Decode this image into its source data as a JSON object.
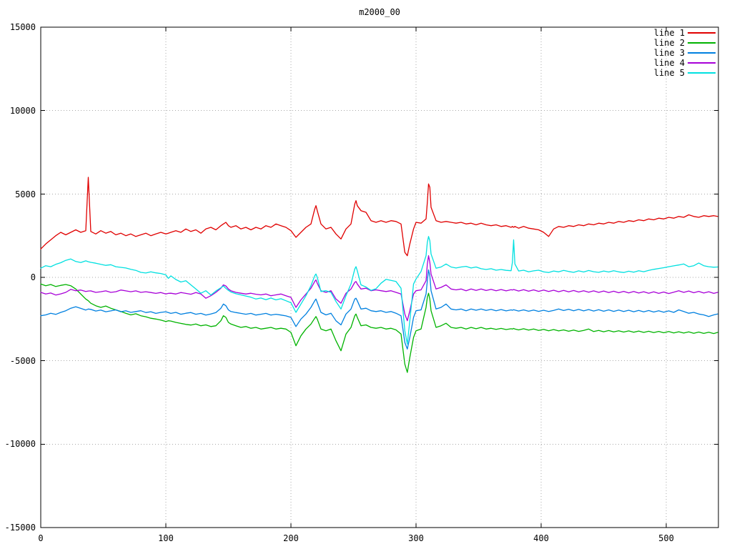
{
  "title": "m2000_00",
  "chart_data": {
    "type": "line",
    "title": "m2000_00",
    "xlabel": "",
    "ylabel": "",
    "xlim": [
      0,
      541.7
    ],
    "ylim": [
      -15000,
      15000
    ],
    "grid": "dotted-gray-at-major-ticks",
    "legend_position": "top-right-inside",
    "background": "#ffffff",
    "xticks": [
      0,
      100,
      200,
      300,
      400,
      500
    ],
    "yticks": [
      15000,
      10000,
      5000,
      0,
      -5000,
      -10000,
      -15000
    ],
    "xtick_labels": [
      "0",
      "100",
      "200",
      "300",
      "400",
      "500"
    ],
    "ytick_labels": [
      "15000",
      "10000",
      "5000",
      "0",
      "-5000",
      "-10000",
      "-15000"
    ],
    "x": [
      0,
      4,
      8,
      12,
      16,
      20,
      24,
      28,
      32,
      36,
      38,
      40,
      44,
      48,
      52,
      56,
      60,
      64,
      68,
      72,
      76,
      80,
      84,
      88,
      92,
      96,
      100,
      102,
      104,
      108,
      112,
      116,
      120,
      124,
      128,
      132,
      136,
      140,
      144,
      146,
      148,
      150,
      152,
      156,
      160,
      164,
      168,
      172,
      176,
      180,
      184,
      188,
      192,
      196,
      200,
      204,
      208,
      212,
      216,
      219,
      220,
      221,
      224,
      228,
      232,
      236,
      240,
      244,
      248,
      251,
      252,
      253,
      256,
      260,
      264,
      268,
      272,
      276,
      280,
      284,
      288,
      291,
      293,
      295,
      298,
      300,
      304,
      308,
      309,
      310,
      311,
      312,
      316,
      320,
      324,
      328,
      332,
      336,
      340,
      344,
      348,
      352,
      356,
      360,
      364,
      368,
      372,
      376,
      377,
      378,
      379,
      382,
      386,
      390,
      394,
      398,
      402,
      406,
      410,
      414,
      418,
      422,
      426,
      430,
      434,
      438,
      442,
      446,
      450,
      454,
      458,
      462,
      466,
      470,
      474,
      478,
      482,
      486,
      490,
      494,
      498,
      502,
      506,
      510,
      514,
      518,
      522,
      526,
      530,
      534,
      538,
      541
    ],
    "series": [
      {
        "name": "line 1",
        "color": "#e00000",
        "values": [
          1700,
          2000,
          2250,
          2500,
          2700,
          2550,
          2700,
          2850,
          2700,
          2800,
          6000,
          2750,
          2600,
          2800,
          2650,
          2750,
          2550,
          2650,
          2500,
          2600,
          2450,
          2550,
          2650,
          2500,
          2600,
          2700,
          2600,
          2650,
          2700,
          2800,
          2700,
          2900,
          2750,
          2850,
          2650,
          2900,
          3000,
          2850,
          3100,
          3200,
          3300,
          3100,
          3000,
          3100,
          2900,
          3000,
          2850,
          3000,
          2900,
          3100,
          3000,
          3200,
          3100,
          3000,
          2800,
          2400,
          2700,
          3000,
          3200,
          4100,
          4300,
          4000,
          3200,
          2900,
          3000,
          2600,
          2300,
          2900,
          3200,
          4400,
          4600,
          4300,
          4000,
          3900,
          3400,
          3300,
          3400,
          3300,
          3400,
          3350,
          3200,
          1500,
          1300,
          2000,
          2900,
          3300,
          3250,
          3500,
          4500,
          5600,
          5400,
          4200,
          3400,
          3300,
          3350,
          3300,
          3250,
          3300,
          3200,
          3250,
          3150,
          3250,
          3150,
          3100,
          3150,
          3050,
          3100,
          3000,
          3050,
          3000,
          3050,
          2950,
          3050,
          2950,
          2900,
          2850,
          2700,
          2450,
          2900,
          3050,
          3000,
          3100,
          3050,
          3150,
          3100,
          3200,
          3150,
          3250,
          3200,
          3300,
          3250,
          3350,
          3300,
          3400,
          3350,
          3450,
          3400,
          3500,
          3450,
          3550,
          3500,
          3600,
          3550,
          3650,
          3600,
          3750,
          3650,
          3600,
          3700,
          3650,
          3700,
          3650
        ]
      },
      {
        "name": "line 2",
        "color": "#00b300",
        "values": [
          -400,
          -500,
          -430,
          -550,
          -480,
          -430,
          -500,
          -700,
          -1000,
          -1300,
          -1400,
          -1550,
          -1700,
          -1800,
          -1720,
          -1850,
          -1950,
          -2050,
          -2150,
          -2250,
          -2180,
          -2300,
          -2360,
          -2450,
          -2500,
          -2560,
          -2650,
          -2600,
          -2620,
          -2700,
          -2760,
          -2820,
          -2860,
          -2800,
          -2900,
          -2850,
          -2950,
          -2900,
          -2600,
          -2300,
          -2400,
          -2700,
          -2800,
          -2900,
          -3000,
          -2950,
          -3050,
          -3000,
          -3100,
          -3050,
          -3000,
          -3100,
          -3050,
          -3100,
          -3300,
          -4100,
          -3500,
          -3100,
          -2800,
          -2450,
          -2350,
          -2500,
          -3100,
          -3200,
          -3100,
          -3800,
          -4400,
          -3400,
          -3000,
          -2300,
          -2200,
          -2400,
          -2900,
          -2850,
          -3000,
          -3050,
          -3000,
          -3100,
          -3050,
          -3150,
          -3400,
          -5200,
          -5700,
          -4800,
          -3600,
          -3200,
          -3100,
          -1800,
          -1200,
          -950,
          -1300,
          -2000,
          -3000,
          -2900,
          -2750,
          -3000,
          -3050,
          -3000,
          -3100,
          -3000,
          -3080,
          -3000,
          -3100,
          -3050,
          -3120,
          -3060,
          -3130,
          -3080,
          -3100,
          -3060,
          -3100,
          -3150,
          -3080,
          -3160,
          -3100,
          -3180,
          -3120,
          -3200,
          -3130,
          -3210,
          -3150,
          -3230,
          -3160,
          -3240,
          -3180,
          -3100,
          -3250,
          -3180,
          -3260,
          -3190,
          -3270,
          -3200,
          -3280,
          -3210,
          -3290,
          -3220,
          -3300,
          -3230,
          -3310,
          -3240,
          -3320,
          -3250,
          -3330,
          -3260,
          -3340,
          -3270,
          -3350,
          -3280,
          -3360,
          -3290,
          -3370,
          -3300
        ]
      },
      {
        "name": "line 3",
        "color": "#0080e0",
        "values": [
          -2300,
          -2250,
          -2150,
          -2220,
          -2100,
          -2000,
          -1850,
          -1760,
          -1860,
          -1960,
          -1900,
          -1920,
          -2020,
          -1960,
          -2060,
          -2010,
          -1950,
          -2060,
          -2000,
          -2100,
          -2050,
          -2000,
          -2110,
          -2060,
          -2160,
          -2100,
          -2060,
          -2110,
          -2160,
          -2100,
          -2210,
          -2150,
          -2110,
          -2210,
          -2160,
          -2260,
          -2200,
          -2110,
          -1850,
          -1600,
          -1700,
          -1950,
          -2050,
          -2110,
          -2160,
          -2210,
          -2160,
          -2260,
          -2210,
          -2160,
          -2260,
          -2210,
          -2260,
          -2310,
          -2400,
          -2950,
          -2500,
          -2200,
          -1800,
          -1400,
          -1300,
          -1500,
          -2100,
          -2250,
          -2150,
          -2600,
          -2850,
          -2200,
          -1900,
          -1300,
          -1250,
          -1400,
          -1900,
          -1850,
          -2000,
          -2050,
          -2000,
          -2100,
          -2050,
          -2150,
          -2300,
          -3900,
          -4300,
          -3600,
          -2400,
          -2000,
          -1950,
          -1000,
          -200,
          450,
          100,
          -800,
          -1900,
          -1800,
          -1600,
          -1900,
          -1950,
          -1900,
          -2000,
          -1900,
          -1970,
          -1900,
          -1980,
          -1920,
          -2000,
          -1930,
          -2010,
          -1950,
          -1970,
          -1940,
          -1960,
          -2020,
          -1950,
          -2030,
          -1960,
          -2040,
          -1970,
          -2050,
          -1980,
          -1900,
          -1990,
          -1910,
          -2000,
          -1920,
          -2010,
          -1930,
          -2020,
          -1940,
          -2030,
          -1950,
          -2040,
          -1960,
          -2050,
          -1970,
          -2060,
          -1980,
          -2070,
          -1990,
          -2080,
          -2000,
          -2090,
          -2010,
          -2100,
          -1950,
          -2050,
          -2150,
          -2100,
          -2200,
          -2250,
          -2350,
          -2250,
          -2200
        ]
      },
      {
        "name": "line 4",
        "color": "#a800d8",
        "values": [
          -900,
          -1000,
          -940,
          -1060,
          -990,
          -900,
          -720,
          -800,
          -760,
          -850,
          -820,
          -810,
          -900,
          -860,
          -810,
          -900,
          -860,
          -760,
          -810,
          -860,
          -810,
          -900,
          -860,
          -910,
          -960,
          -910,
          -1000,
          -960,
          -950,
          -1000,
          -910,
          -960,
          -1010,
          -910,
          -1000,
          -1250,
          -1100,
          -900,
          -650,
          -450,
          -520,
          -700,
          -800,
          -900,
          -950,
          -1000,
          -950,
          -1010,
          -1050,
          -1000,
          -1100,
          -1050,
          -1000,
          -1100,
          -1200,
          -1800,
          -1350,
          -1000,
          -650,
          -250,
          -150,
          -350,
          -800,
          -900,
          -800,
          -1300,
          -1550,
          -950,
          -700,
          -300,
          -250,
          -400,
          -700,
          -650,
          -800,
          -750,
          -800,
          -850,
          -800,
          -900,
          -1000,
          -2200,
          -2600,
          -2000,
          -1000,
          -800,
          -750,
          -200,
          800,
          1300,
          900,
          200,
          -700,
          -600,
          -450,
          -700,
          -750,
          -700,
          -800,
          -700,
          -780,
          -700,
          -790,
          -720,
          -800,
          -730,
          -810,
          -740,
          -760,
          -730,
          -750,
          -820,
          -740,
          -830,
          -750,
          -840,
          -760,
          -850,
          -770,
          -860,
          -780,
          -870,
          -790,
          -880,
          -800,
          -890,
          -810,
          -900,
          -820,
          -910,
          -830,
          -920,
          -840,
          -930,
          -850,
          -940,
          -860,
          -950,
          -870,
          -960,
          -880,
          -970,
          -890,
          -800,
          -900,
          -820,
          -920,
          -840,
          -940,
          -860,
          -960,
          -900
        ]
      },
      {
        "name": "line 5",
        "color": "#00e0e0",
        "values": [
          550,
          700,
          640,
          780,
          880,
          1020,
          1100,
          950,
          890,
          990,
          940,
          900,
          850,
          780,
          720,
          760,
          640,
          600,
          560,
          480,
          420,
          300,
          260,
          330,
          270,
          230,
          150,
          -60,
          90,
          -130,
          -280,
          -200,
          -450,
          -700,
          -950,
          -800,
          -1060,
          -820,
          -620,
          -520,
          -660,
          -780,
          -880,
          -980,
          -1050,
          -1120,
          -1190,
          -1300,
          -1240,
          -1340,
          -1240,
          -1350,
          -1280,
          -1400,
          -1520,
          -2100,
          -1600,
          -1100,
          -500,
          100,
          200,
          0,
          -850,
          -800,
          -900,
          -1450,
          -1900,
          -1100,
          -400,
          500,
          640,
          400,
          -450,
          -580,
          -780,
          -680,
          -350,
          -120,
          -180,
          -250,
          -650,
          -3200,
          -4000,
          -2600,
          -400,
          -100,
          350,
          1300,
          2100,
          2450,
          2200,
          1400,
          550,
          620,
          800,
          620,
          560,
          620,
          660,
          560,
          620,
          520,
          470,
          520,
          430,
          470,
          420,
          400,
          900,
          2250,
          800,
          380,
          430,
          330,
          390,
          430,
          330,
          290,
          380,
          330,
          420,
          350,
          300,
          390,
          320,
          410,
          340,
          300,
          380,
          320,
          400,
          330,
          290,
          370,
          310,
          400,
          340,
          420,
          480,
          530,
          580,
          640,
          690,
          740,
          800,
          640,
          700,
          860,
          700,
          640,
          610,
          620
        ]
      }
    ]
  }
}
